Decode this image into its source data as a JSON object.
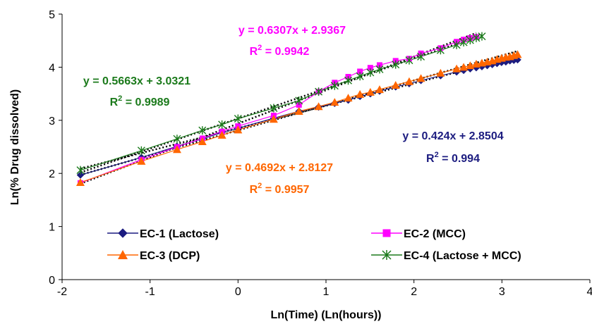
{
  "chart_data": {
    "type": "scatter",
    "xlabel": "Ln(Time) (Ln(hours))",
    "ylabel": "Ln(% Drug dissolved)",
    "xlim": [
      -2,
      4
    ],
    "ylim": [
      0,
      5
    ],
    "x_ticks": [
      "-2",
      "-1",
      "0",
      "1",
      "2",
      "3",
      "4"
    ],
    "y_ticks": [
      "0",
      "1",
      "2",
      "3",
      "4",
      "5"
    ],
    "grid": false,
    "legend_position": "bottom-inside",
    "series": [
      {
        "name": "EC-1 (Lactose)",
        "color": "#1c1c80",
        "marker": "diamond",
        "x": [
          -1.7918,
          -1.0986,
          -0.6931,
          -0.4055,
          -0.1823,
          0.0,
          0.4055,
          0.6931,
          0.9163,
          1.0986,
          1.2528,
          1.3863,
          1.5041,
          1.6094,
          1.7918,
          1.9459,
          2.0794,
          2.3026,
          2.4849,
          2.5649,
          2.6391,
          2.7081,
          2.7726,
          2.8332,
          2.8904,
          2.9444,
          2.9957,
          3.0445,
          3.091,
          3.1355,
          3.1781
        ],
        "y": [
          1.97,
          2.3,
          2.51,
          2.65,
          2.77,
          2.85,
          3.04,
          3.17,
          3.25,
          3.32,
          3.38,
          3.45,
          3.5,
          3.55,
          3.63,
          3.69,
          3.75,
          3.84,
          3.91,
          3.94,
          3.97,
          3.99,
          4.01,
          4.03,
          4.05,
          4.07,
          4.09,
          4.1,
          4.12,
          4.13,
          4.14
        ]
      },
      {
        "name": "EC-2 (MCC)",
        "color": "#ff00ff",
        "marker": "square",
        "x": [
          -1.7918,
          -1.0986,
          -0.6931,
          -0.4055,
          -0.1823,
          0.0,
          0.4055,
          0.6931,
          0.9163,
          1.0986,
          1.2528,
          1.3863,
          1.5041,
          1.6094,
          1.7918,
          1.9459,
          2.0794,
          2.3026,
          2.4849,
          2.5649,
          2.6391,
          2.7081
        ],
        "y": [
          1.82,
          2.26,
          2.5,
          2.66,
          2.79,
          2.89,
          3.09,
          3.29,
          3.54,
          3.71,
          3.82,
          3.92,
          3.99,
          4.04,
          4.12,
          4.16,
          4.26,
          4.36,
          4.48,
          4.52,
          4.55,
          4.57
        ]
      },
      {
        "name": "EC-3 (DCP)",
        "color": "#ff6600",
        "marker": "triangle",
        "x": [
          -1.7918,
          -1.0986,
          -0.6931,
          -0.4055,
          -0.1823,
          0.0,
          0.4055,
          0.6931,
          0.9163,
          1.0986,
          1.2528,
          1.3863,
          1.5041,
          1.6094,
          1.7918,
          1.9459,
          2.0794,
          2.3026,
          2.4849,
          2.5649,
          2.6391,
          2.7081,
          2.7726,
          2.8332,
          2.8904,
          2.9444,
          2.9957,
          3.0445,
          3.091,
          3.1355,
          3.1781
        ],
        "y": [
          1.83,
          2.23,
          2.45,
          2.6,
          2.72,
          2.82,
          3.02,
          3.17,
          3.26,
          3.34,
          3.42,
          3.49,
          3.53,
          3.58,
          3.66,
          3.73,
          3.79,
          3.89,
          3.97,
          4.0,
          4.03,
          4.06,
          4.08,
          4.1,
          4.12,
          4.15,
          4.17,
          4.19,
          4.2,
          4.22,
          4.24
        ]
      },
      {
        "name": "EC-4 (Lactose + MCC)",
        "color": "#1b7a1b",
        "marker": "star",
        "x": [
          -1.7918,
          -1.0986,
          -0.6931,
          -0.4055,
          -0.1823,
          0.0,
          0.4055,
          0.6931,
          0.9163,
          1.0986,
          1.2528,
          1.3863,
          1.5041,
          1.6094,
          1.7918,
          1.9459,
          2.0794,
          2.3026,
          2.4849,
          2.5649,
          2.6391,
          2.7081,
          2.7726
        ],
        "y": [
          2.06,
          2.43,
          2.65,
          2.81,
          2.92,
          3.03,
          3.23,
          3.37,
          3.54,
          3.65,
          3.75,
          3.83,
          3.9,
          3.96,
          4.05,
          4.13,
          4.2,
          4.32,
          4.42,
          4.47,
          4.51,
          4.55,
          4.58
        ]
      }
    ],
    "trendlines": [
      {
        "slope": 0.424,
        "intercept": 2.8504,
        "x_range": [
          -1.7918,
          3.1781
        ],
        "series": "EC-1 (Lactose)"
      },
      {
        "slope": 0.6307,
        "intercept": 2.9367,
        "x_range": [
          -1.7918,
          2.7081
        ],
        "series": "EC-2 (MCC)"
      },
      {
        "slope": 0.4692,
        "intercept": 2.8127,
        "x_range": [
          -1.7918,
          3.1781
        ],
        "series": "EC-3 (DCP)"
      },
      {
        "slope": 0.5663,
        "intercept": 3.0321,
        "x_range": [
          -1.7918,
          2.7726
        ],
        "series": "EC-4 (Lactose + MCC)"
      }
    ],
    "annotations": [
      {
        "id": "eq-ec1",
        "equation": "y = 0.424x + 2.8504",
        "r2_value": " = 0.994",
        "color": "#1c1c80"
      },
      {
        "id": "eq-ec2",
        "equation": "y = 0.6307x + 2.9367",
        "r2_value": " = 0.9942",
        "color": "#ff00ff"
      },
      {
        "id": "eq-ec3",
        "equation": "y = 0.4692x + 2.8127",
        "r2_value": " = 0.9957",
        "color": "#ff6600"
      },
      {
        "id": "eq-ec4",
        "equation": "y = 0.5663x + 3.0321",
        "r2_value": " = 0.9989",
        "color": "#1b7a1b"
      }
    ],
    "r2_symbol": "R",
    "r2_superscript": "2"
  }
}
